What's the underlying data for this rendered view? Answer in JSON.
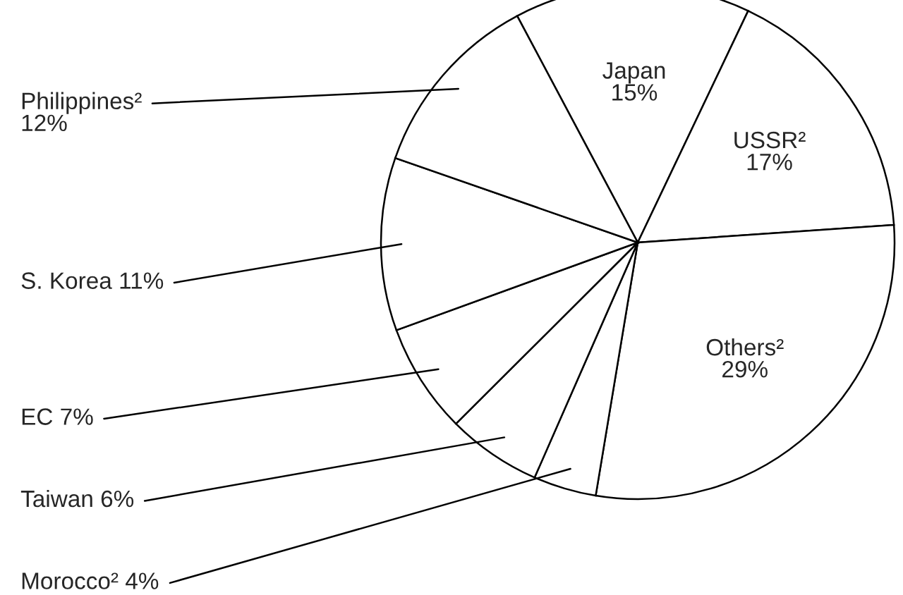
{
  "chart_data": {
    "type": "pie",
    "categories": [
      "Japan",
      "USSR²",
      "Others²",
      "Morocco²",
      "Taiwan",
      "EC",
      "S. Korea",
      "Philippines²"
    ],
    "values": [
      15,
      17,
      29,
      4,
      6,
      7,
      11,
      12
    ],
    "value_labels": [
      "15%",
      "17%",
      "29%",
      "4%",
      "6%",
      "7%",
      "11%",
      "12%"
    ],
    "colors": [
      "#ffffff",
      "#ffffff",
      "#ffffff",
      "#ffffff",
      "#ffffff",
      "#ffffff",
      "#ffffff",
      "#ffffff"
    ]
  }
}
